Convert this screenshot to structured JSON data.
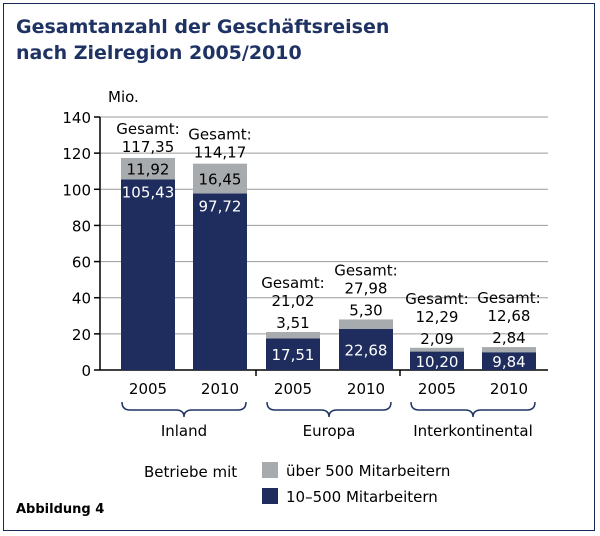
{
  "title_line1": "Gesamtanzahl der Geschäftsreisen",
  "title_line2": "nach Zielregion 2005/2010",
  "figure_label": "Abbildung 4",
  "chart_data": {
    "type": "bar",
    "stacked": true,
    "ylabel": "Mio.",
    "ylim": [
      0,
      140
    ],
    "yticks": [
      0,
      20,
      40,
      60,
      80,
      100,
      120,
      140
    ],
    "grid": true,
    "bars": [
      {
        "group": "Inland",
        "year": "2005",
        "small": 105.43,
        "large": 11.92,
        "total_label": "Gesamt:",
        "total": "117,35",
        "small_label": "105,43",
        "large_label": "11,92"
      },
      {
        "group": "Inland",
        "year": "2010",
        "small": 97.72,
        "large": 16.45,
        "total_label": "Gesamt:",
        "total": "114,17",
        "small_label": "97,72",
        "large_label": "16,45"
      },
      {
        "group": "Europa",
        "year": "2005",
        "small": 17.51,
        "large": 3.51,
        "total_label": "Gesamt:",
        "total": "21,02",
        "small_label": "17,51",
        "large_label": "3,51"
      },
      {
        "group": "Europa",
        "year": "2010",
        "small": 22.68,
        "large": 5.3,
        "total_label": "Gesamt:",
        "total": "27,98",
        "small_label": "22,68",
        "large_label": "5,30"
      },
      {
        "group": "Interkontinental",
        "year": "2005",
        "small": 10.2,
        "large": 2.09,
        "total_label": "Gesamt:",
        "total": "12,29",
        "small_label": "10,20",
        "large_label": "2,09"
      },
      {
        "group": "Interkontinental",
        "year": "2010",
        "small": 9.84,
        "large": 2.84,
        "total_label": "Gesamt:",
        "total": "12,68",
        "small_label": "9,84",
        "large_label": "2,84"
      }
    ],
    "groups": [
      "Inland",
      "Europa",
      "Interkontinental"
    ],
    "legend": {
      "title": "Betriebe mit",
      "items": [
        {
          "name": "über 500 Mitarbeitern",
          "color": "#a8abae"
        },
        {
          "name": "10–500 Mitarbeitern",
          "color": "#1e2d5e"
        }
      ]
    },
    "colors": {
      "small": "#1e2d5e",
      "large": "#a8abae",
      "grid": "#9a9a9a",
      "bracket": "#1e3263"
    }
  }
}
